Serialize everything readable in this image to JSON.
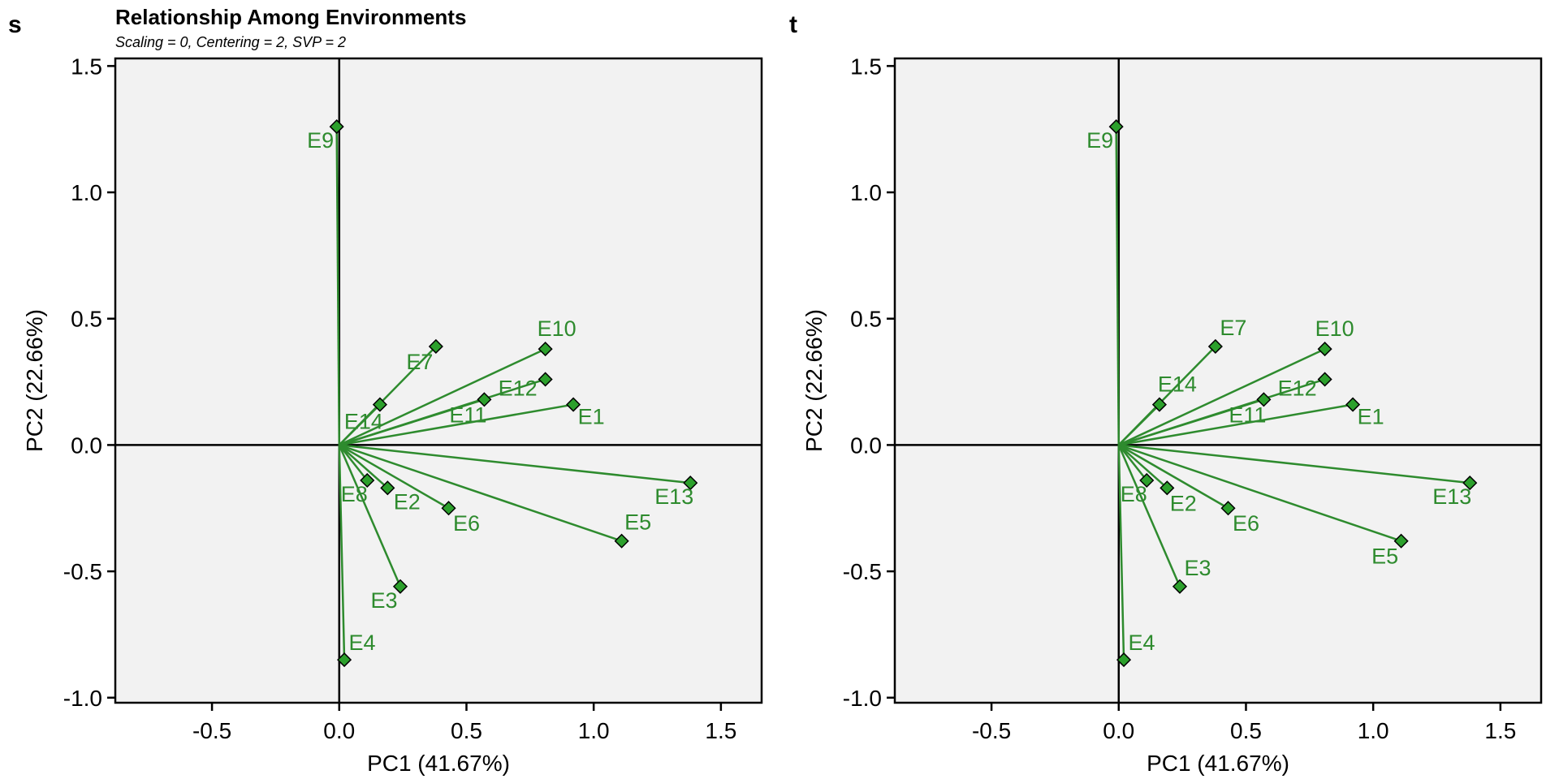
{
  "colors": {
    "plot_bg": "#f2f2f2",
    "vector": "#2e8b2e",
    "marker": "#2ca02c",
    "label": "#2e8b2e",
    "axis": "#000000"
  },
  "panels": [
    {
      "letter": "s",
      "title": "Relationship Among Environments",
      "subtitle": "Scaling = 0, Centering = 2, SVP = 2",
      "xlabel": "PC1 (41.67%)",
      "ylabel": "PC2 (22.66%)",
      "x_ticks": [
        "-0.5",
        "0.0",
        "0.5",
        "1.0",
        "1.5"
      ],
      "y_ticks": [
        "1.5",
        "1.0",
        "0.5",
        "0.0",
        "-0.5",
        "-1.0"
      ]
    },
    {
      "letter": "t",
      "title": "",
      "subtitle": "",
      "xlabel": "PC1 (41.67%)",
      "ylabel": "PC2 (22.66%)",
      "x_ticks": [
        "-0.5",
        "0.0",
        "0.5",
        "1.0",
        "1.5"
      ],
      "y_ticks": [
        "1.5",
        "1.0",
        "0.5",
        "0.0",
        "-0.5",
        "-1.0"
      ]
    }
  ],
  "chart_data": [
    {
      "type": "scatter",
      "title": "Relationship Among Environments",
      "subtitle": "Scaling = 0, Centering = 2, SVP = 2",
      "xlabel": "PC1 (41.67%)",
      "ylabel": "PC2 (22.66%)",
      "xlim": [
        -0.88,
        1.66
      ],
      "ylim": [
        -1.02,
        1.53
      ],
      "x_ticks": [
        -0.5,
        0.0,
        0.5,
        1.0,
        1.5
      ],
      "y_ticks": [
        -1.0,
        -0.5,
        0.0,
        0.5,
        1.0,
        1.5
      ],
      "vectors_from_origin": true,
      "points": [
        {
          "label": "E1",
          "x": 0.92,
          "y": 0.16
        },
        {
          "label": "E2",
          "x": 0.19,
          "y": -0.17
        },
        {
          "label": "E3",
          "x": 0.24,
          "y": -0.56
        },
        {
          "label": "E4",
          "x": 0.02,
          "y": -0.85
        },
        {
          "label": "E5",
          "x": 1.11,
          "y": -0.38
        },
        {
          "label": "E6",
          "x": 0.43,
          "y": -0.25
        },
        {
          "label": "E7",
          "x": 0.38,
          "y": 0.39
        },
        {
          "label": "E8",
          "x": 0.11,
          "y": -0.14
        },
        {
          "label": "E9",
          "x": -0.01,
          "y": 1.26
        },
        {
          "label": "E10",
          "x": 0.81,
          "y": 0.38
        },
        {
          "label": "E11",
          "x": 0.57,
          "y": 0.18
        },
        {
          "label": "E12",
          "x": 0.81,
          "y": 0.26
        },
        {
          "label": "E13",
          "x": 1.38,
          "y": -0.15
        },
        {
          "label": "E14",
          "x": 0.16,
          "y": 0.16
        }
      ]
    },
    {
      "type": "scatter",
      "title": "",
      "xlabel": "PC1 (41.67%)",
      "ylabel": "PC2 (22.66%)",
      "xlim": [
        -0.88,
        1.66
      ],
      "ylim": [
        -1.02,
        1.53
      ],
      "x_ticks": [
        -0.5,
        0.0,
        0.5,
        1.0,
        1.5
      ],
      "y_ticks": [
        -1.0,
        -0.5,
        0.0,
        0.5,
        1.0,
        1.5
      ],
      "vectors_from_origin": true,
      "points": [
        {
          "label": "E1",
          "x": 0.92,
          "y": 0.16
        },
        {
          "label": "E2",
          "x": 0.19,
          "y": -0.17
        },
        {
          "label": "E3",
          "x": 0.24,
          "y": -0.56
        },
        {
          "label": "E4",
          "x": 0.02,
          "y": -0.85
        },
        {
          "label": "E5",
          "x": 1.11,
          "y": -0.38
        },
        {
          "label": "E6",
          "x": 0.43,
          "y": -0.25
        },
        {
          "label": "E7",
          "x": 0.38,
          "y": 0.39
        },
        {
          "label": "E8",
          "x": 0.11,
          "y": -0.14
        },
        {
          "label": "E9",
          "x": -0.01,
          "y": 1.26
        },
        {
          "label": "E10",
          "x": 0.81,
          "y": 0.38
        },
        {
          "label": "E11",
          "x": 0.57,
          "y": 0.18
        },
        {
          "label": "E12",
          "x": 0.81,
          "y": 0.26
        },
        {
          "label": "E13",
          "x": 1.38,
          "y": -0.15
        },
        {
          "label": "E14",
          "x": 0.16,
          "y": 0.16
        }
      ]
    }
  ]
}
